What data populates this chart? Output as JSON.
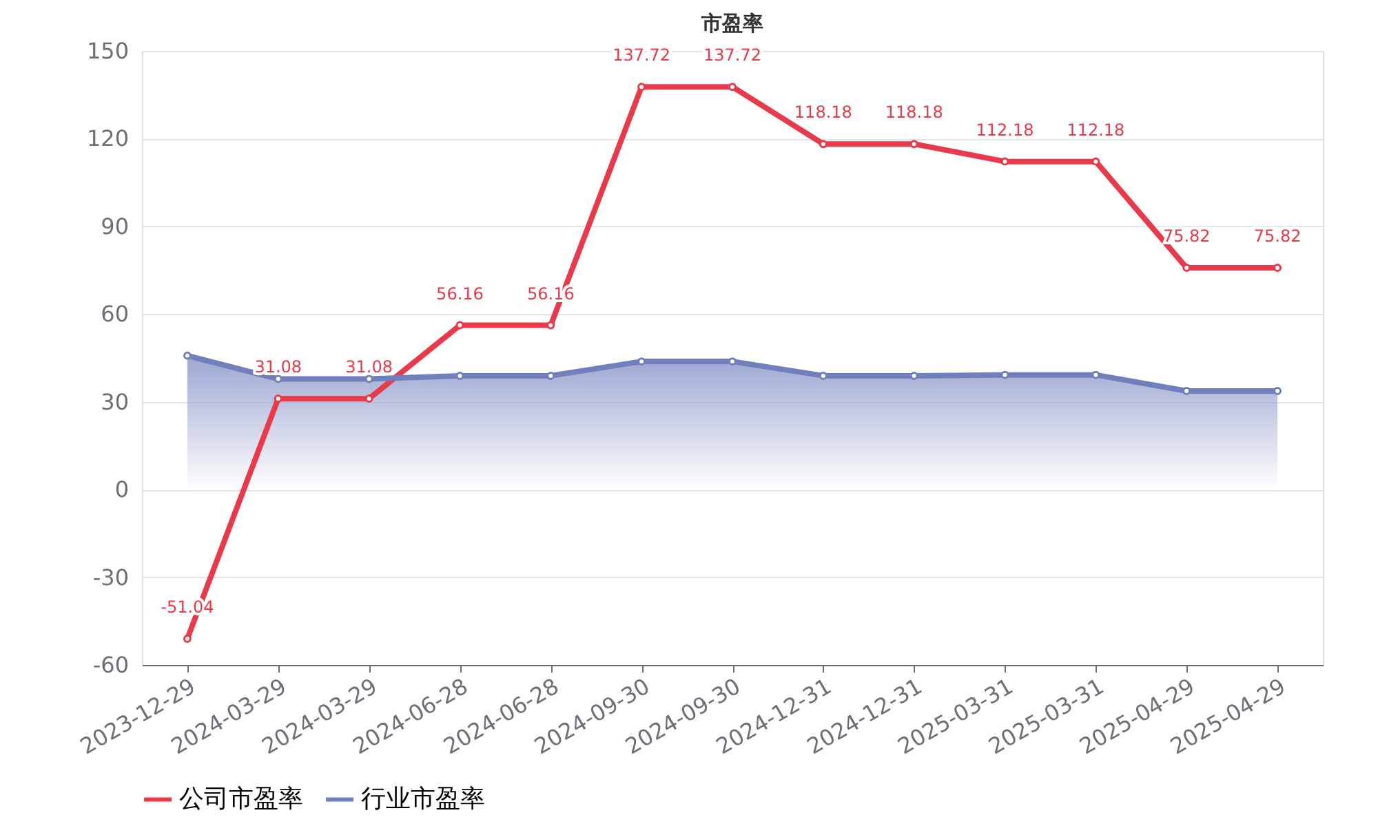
{
  "chart_data": {
    "type": "line",
    "title": "市盈率",
    "categories": [
      "2023-12-29",
      "2024-03-29",
      "2024-03-29",
      "2024-06-28",
      "2024-06-28",
      "2024-09-30",
      "2024-09-30",
      "2024-12-31",
      "2024-12-31",
      "2025-03-31",
      "2025-03-31",
      "2025-04-29",
      "2025-04-29"
    ],
    "series": [
      {
        "name": "公司市盈率",
        "color": "#e83a4a",
        "values": [
          -51.04,
          31.08,
          31.08,
          56.16,
          56.16,
          137.72,
          137.72,
          118.18,
          118.18,
          112.18,
          112.18,
          75.82,
          75.82
        ],
        "value_labels": [
          "-51.04",
          "31.08",
          "31.08",
          "56.16",
          "56.16",
          "137.72",
          "137.72",
          "118.18",
          "118.18",
          "112.18",
          "112.18",
          "75.82",
          "75.82"
        ]
      },
      {
        "name": "行业市盈率",
        "type": "area",
        "color": "#7180bd",
        "values": [
          45.8,
          37.8,
          37.8,
          38.9,
          38.9,
          43.8,
          43.8,
          38.9,
          38.9,
          39.2,
          39.2,
          33.7,
          33.7
        ]
      }
    ],
    "ylim": [
      -60,
      150
    ],
    "yticks": [
      -60,
      -30,
      0,
      30,
      60,
      90,
      120,
      150
    ],
    "grid": "y",
    "legend": "bottom",
    "marker": "circle",
    "line_style": "solid"
  }
}
